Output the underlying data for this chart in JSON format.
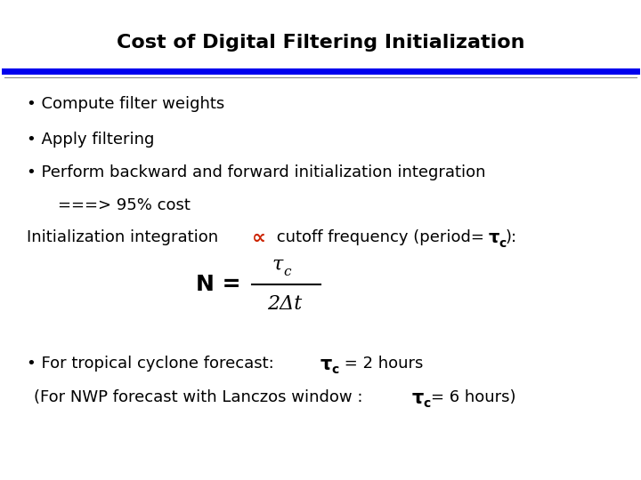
{
  "title": "Cost of Digital Filtering Initialization",
  "title_fontsize": 16,
  "title_fontweight": "bold",
  "background_color": "#ffffff",
  "line_color": "#0000ee",
  "bullet1": "Compute filter weights",
  "bullet2": "Apply filtering",
  "bullet3": "Perform backward and forward initialization integration",
  "indent_text1": "===> 95% cost",
  "proportional_color": "#cc2200",
  "font_size_body": 13,
  "font_size_formula": 15
}
